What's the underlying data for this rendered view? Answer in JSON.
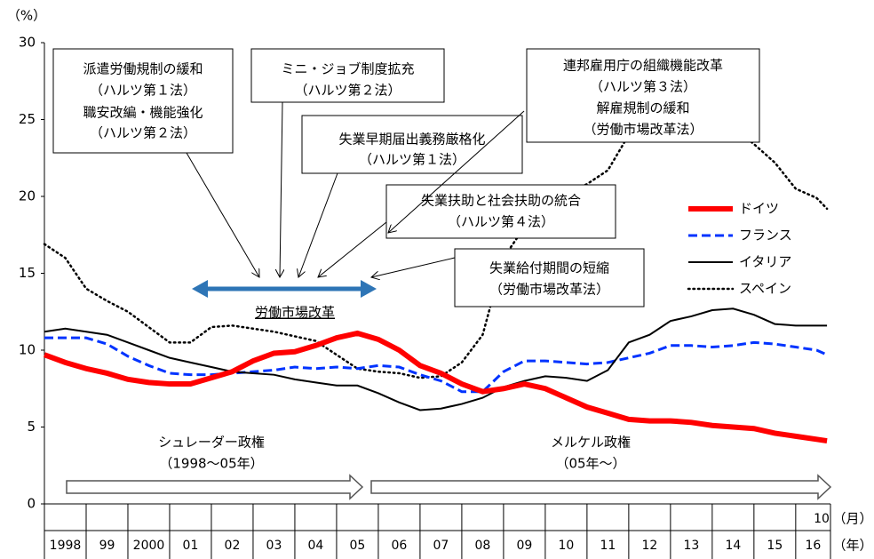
{
  "chart_data": {
    "type": "line",
    "y_unit": "（%）",
    "ylim": [
      0,
      30
    ],
    "yticks": [
      0,
      5,
      10,
      15,
      20,
      25,
      30
    ],
    "xlim": [
      1998,
      2016.8333
    ],
    "year_labels": [
      "1998",
      "99",
      "2000",
      "01",
      "02",
      "03",
      "04",
      "05",
      "06",
      "07",
      "08",
      "09",
      "10",
      "11",
      "12",
      "13",
      "14",
      "15",
      "16"
    ],
    "month_label": "10",
    "month_unit": "（月）",
    "year_unit": "（年）",
    "x": [
      1998,
      1998.5,
      1999,
      1999.5,
      2000,
      2000.5,
      2001,
      2001.5,
      2002,
      2002.5,
      2003,
      2003.5,
      2004,
      2004.5,
      2005,
      2005.5,
      2006,
      2006.5,
      2007,
      2007.5,
      2008,
      2008.5,
      2009,
      2009.5,
      2010,
      2010.5,
      2011,
      2011.5,
      2012,
      2012.5,
      2013,
      2013.5,
      2014,
      2014.5,
      2015,
      2015.5,
      2016,
      2016.5,
      2016.75
    ],
    "series": [
      {
        "name": "ドイツ",
        "color": "#ff0000",
        "style": "thick",
        "values": [
          9.7,
          9.2,
          8.8,
          8.5,
          8.1,
          7.9,
          7.8,
          7.8,
          8.2,
          8.6,
          9.3,
          9.8,
          9.9,
          10.3,
          10.8,
          11.1,
          10.7,
          10.0,
          9.0,
          8.5,
          7.8,
          7.3,
          7.5,
          7.8,
          7.5,
          6.9,
          6.3,
          5.9,
          5.5,
          5.4,
          5.4,
          5.3,
          5.1,
          5.0,
          4.9,
          4.6,
          4.4,
          4.2,
          4.1
        ]
      },
      {
        "name": "フランス",
        "color": "#0033ff",
        "style": "dashed",
        "values": [
          10.8,
          10.8,
          10.8,
          10.4,
          9.6,
          9.0,
          8.5,
          8.4,
          8.4,
          8.5,
          8.6,
          8.7,
          8.9,
          8.8,
          8.9,
          8.8,
          9.0,
          8.9,
          8.4,
          8.0,
          7.3,
          7.3,
          8.6,
          9.3,
          9.3,
          9.2,
          9.1,
          9.2,
          9.5,
          9.8,
          10.3,
          10.3,
          10.2,
          10.3,
          10.5,
          10.4,
          10.2,
          10.0,
          9.7
        ]
      },
      {
        "name": "イタリア",
        "color": "#000000",
        "style": "solid",
        "values": [
          11.2,
          11.4,
          11.2,
          11.0,
          10.5,
          10.0,
          9.5,
          9.2,
          8.9,
          8.6,
          8.5,
          8.4,
          8.1,
          7.9,
          7.7,
          7.7,
          7.2,
          6.6,
          6.1,
          6.2,
          6.5,
          6.9,
          7.6,
          8.0,
          8.3,
          8.2,
          8.0,
          8.7,
          10.5,
          11.0,
          11.9,
          12.2,
          12.6,
          12.7,
          12.3,
          11.7,
          11.6,
          11.6,
          11.6
        ]
      },
      {
        "name": "スペイン",
        "color": "#000000",
        "style": "dotted",
        "values": [
          16.9,
          16.0,
          14.0,
          13.2,
          12.5,
          11.5,
          10.5,
          10.5,
          11.5,
          11.6,
          11.4,
          11.2,
          10.9,
          10.6,
          9.7,
          8.8,
          8.6,
          8.5,
          8.2,
          8.3,
          9.2,
          11.0,
          16.0,
          18.0,
          19.9,
          20.2,
          20.8,
          21.7,
          24.0,
          25.0,
          26.2,
          26.2,
          25.4,
          24.5,
          23.4,
          22.2,
          20.5,
          19.9,
          19.2
        ]
      }
    ],
    "annotations": [
      {
        "lines": [
          "派遣労働規制の緩和",
          "（ハルツ第１法）",
          "職安改編・機能強化",
          "（ハルツ第２法）"
        ]
      },
      {
        "lines": [
          "ミニ・ジョブ制度拡充",
          "（ハルツ第２法）"
        ]
      },
      {
        "lines": [
          "失業早期届出義務厳格化",
          "（ハルツ第１法）"
        ]
      },
      {
        "lines": [
          "失業扶助と社会扶助の統合",
          "（ハルツ第４法）"
        ]
      },
      {
        "lines": [
          "連邦雇用庁の組織機能改革",
          "（ハルツ第３法）",
          "解雇規制の緩和",
          "（労働市場改革法）"
        ]
      },
      {
        "lines": [
          "失業給付期間の短縮",
          "（労働市場改革法）"
        ]
      }
    ],
    "reform_label": "労働市場改革",
    "eras": [
      {
        "name": "シュレーダー政権",
        "period": "（1998～05年）"
      },
      {
        "name": "メルケル政権",
        "period": "（05年～）"
      }
    ]
  }
}
